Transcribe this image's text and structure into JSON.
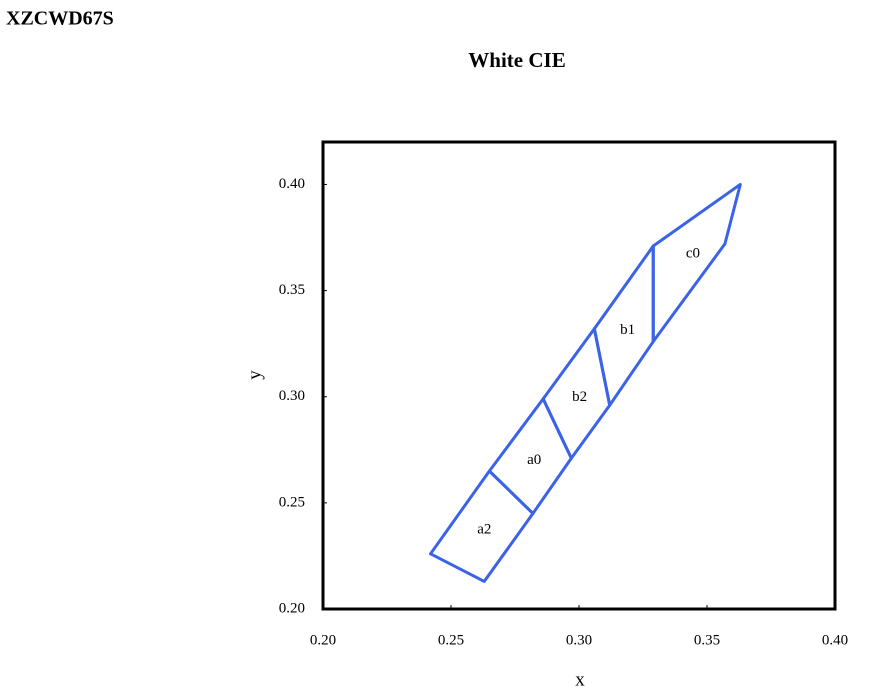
{
  "header": "XZCWD67S",
  "chart_data": {
    "type": "polygon",
    "title": "White  CIE",
    "xlabel": "x",
    "ylabel": "y",
    "color": "#3b63e8",
    "xlim": [
      0.2,
      0.4
    ],
    "ylim": [
      0.2,
      0.42
    ],
    "xticks": [
      {
        "value": 0.2,
        "label": "0.20"
      },
      {
        "value": 0.25,
        "label": "0.25"
      },
      {
        "value": 0.3,
        "label": "0.30"
      },
      {
        "value": 0.35,
        "label": "0.35"
      },
      {
        "value": 0.4,
        "label": "0.40"
      }
    ],
    "yticks": [
      {
        "value": 0.2,
        "label": "0.20"
      },
      {
        "value": 0.25,
        "label": "0.25"
      },
      {
        "value": 0.3,
        "label": "0.30"
      },
      {
        "value": 0.35,
        "label": "0.35"
      },
      {
        "value": 0.4,
        "label": "0.40"
      }
    ],
    "regions": [
      {
        "name": "a2",
        "x": [
          0.242,
          0.265,
          0.282,
          0.263
        ],
        "y": [
          0.226,
          0.265,
          0.245,
          0.213
        ]
      },
      {
        "name": "a0",
        "x": [
          0.265,
          0.286,
          0.297,
          0.282
        ],
        "y": [
          0.265,
          0.299,
          0.271,
          0.245
        ]
      },
      {
        "name": "b2",
        "x": [
          0.286,
          0.306,
          0.312,
          0.297
        ],
        "y": [
          0.299,
          0.332,
          0.296,
          0.271
        ]
      },
      {
        "name": "b1",
        "x": [
          0.306,
          0.329,
          0.329,
          0.312
        ],
        "y": [
          0.332,
          0.371,
          0.326,
          0.296
        ]
      },
      {
        "name": "c0",
        "x": [
          0.329,
          0.363,
          0.357,
          0.329
        ],
        "y": [
          0.371,
          0.4,
          0.372,
          0.326
        ]
      }
    ]
  }
}
